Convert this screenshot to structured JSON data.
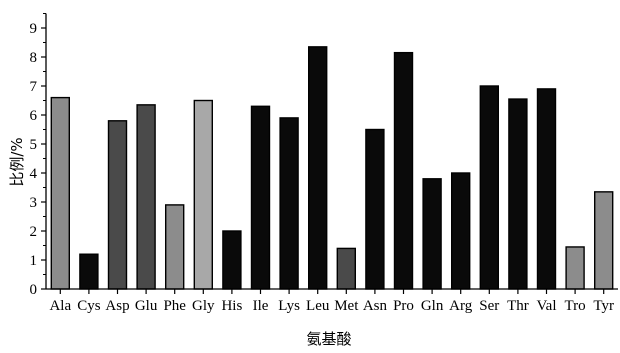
{
  "chart_data": {
    "type": "bar",
    "xlabel": "氨基酸",
    "ylabel": "比例/%",
    "ylim": [
      0,
      9.5
    ],
    "yticks": [
      0,
      1,
      2,
      3,
      4,
      5,
      6,
      7,
      8,
      9
    ],
    "grid": false,
    "categories": [
      "Ala",
      "Cys",
      "Asp",
      "Glu",
      "Phe",
      "Gly",
      "His",
      "Ile",
      "Lys",
      "Leu",
      "Met",
      "Asn",
      "Pro",
      "Gln",
      "Arg",
      "Ser",
      "Thr",
      "Val",
      "Tro",
      "Tyr"
    ],
    "values": [
      6.6,
      1.2,
      5.8,
      6.35,
      2.9,
      6.5,
      2.0,
      6.3,
      5.9,
      8.35,
      1.4,
      5.5,
      8.15,
      3.8,
      4.0,
      7.0,
      6.55,
      6.9,
      1.45,
      3.35
    ],
    "colors": [
      "#8c8c8c",
      "#0a0a0a",
      "#4a4a4a",
      "#4a4a4a",
      "#8c8c8c",
      "#a8a8a8",
      "#0a0a0a",
      "#0a0a0a",
      "#0a0a0a",
      "#0a0a0a",
      "#4a4a4a",
      "#0a0a0a",
      "#0a0a0a",
      "#0a0a0a",
      "#0a0a0a",
      "#0a0a0a",
      "#0a0a0a",
      "#0a0a0a",
      "#8c8c8c",
      "#8c8c8c"
    ]
  }
}
